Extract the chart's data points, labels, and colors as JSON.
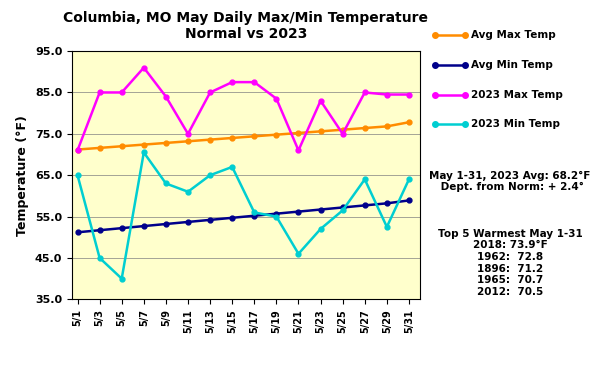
{
  "title": "Columbia, MO May Daily Max/Min Temperature\nNormal vs 2023",
  "ylabel": "Temperature (°F)",
  "ylim": [
    35.0,
    95.0
  ],
  "yticks": [
    35.0,
    45.0,
    55.0,
    65.0,
    75.0,
    85.0,
    95.0
  ],
  "days": [
    1,
    3,
    5,
    7,
    9,
    11,
    13,
    15,
    17,
    19,
    21,
    23,
    25,
    27,
    29,
    31
  ],
  "xlabels": [
    "5/1",
    "5/3",
    "5/5",
    "5/7",
    "5/9",
    "5/11",
    "5/13",
    "5/15",
    "5/17",
    "5/19",
    "5/21",
    "5/23",
    "5/25",
    "5/27",
    "5/29",
    "5/31"
  ],
  "avg_max": [
    71.2,
    71.6,
    72.0,
    72.4,
    72.8,
    73.2,
    73.6,
    74.0,
    74.4,
    74.8,
    75.2,
    75.6,
    76.0,
    76.4,
    76.8,
    77.8
  ],
  "avg_min": [
    51.2,
    51.7,
    52.2,
    52.7,
    53.2,
    53.7,
    54.2,
    54.7,
    55.2,
    55.7,
    56.2,
    56.7,
    57.2,
    57.7,
    58.2,
    58.9
  ],
  "max_2023": [
    71.0,
    85.0,
    85.0,
    91.0,
    84.0,
    75.0,
    85.0,
    87.5,
    87.5,
    83.5,
    71.0,
    83.0,
    75.0,
    85.0,
    84.5,
    84.5
  ],
  "min_2023": [
    65.0,
    45.0,
    40.0,
    70.5,
    63.0,
    61.0,
    65.0,
    67.0,
    56.0,
    55.0,
    46.0,
    52.0,
    56.5,
    64.0,
    52.5,
    64.0
  ],
  "avg_max_color": "#FF8C00",
  "avg_min_color": "#00008B",
  "max_2023_color": "#FF00FF",
  "min_2023_color": "#00CED1",
  "bg_color": "#FFFFCC",
  "legend_labels": [
    "Avg Max Temp",
    "Avg Min Temp",
    "2023 Max Temp",
    "2023 Min Temp"
  ],
  "annotation1": "May 1-31, 2023 Avg: 68.2°F\n Dept. from Norm: + 2.4°",
  "annotation2_title": "Top 5 Warmest May 1-31",
  "annotation2_lines": [
    "2018: 73.9°F",
    "1962:  72.8",
    "1896:  71.2",
    "1965:  70.7",
    "2012:  70.5"
  ]
}
